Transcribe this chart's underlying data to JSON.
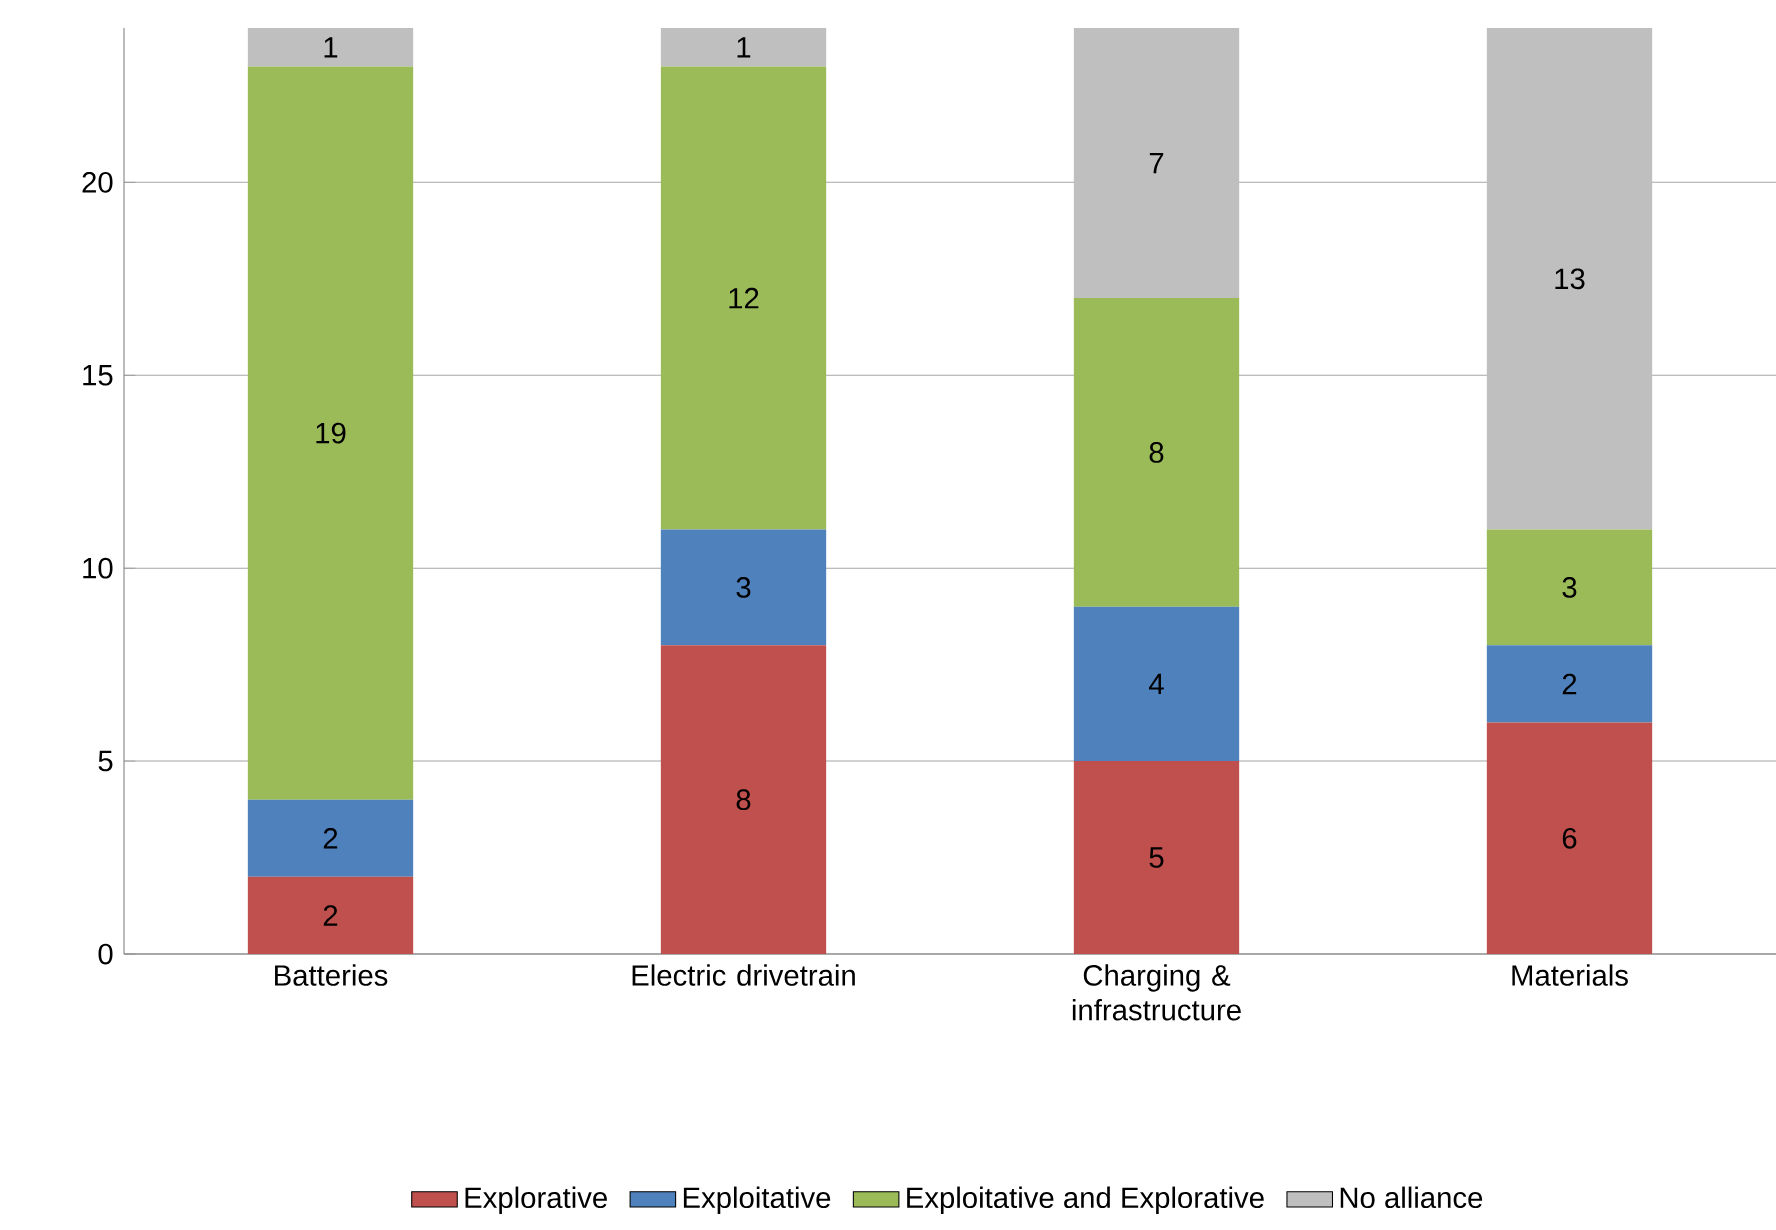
{
  "chart_data": {
    "type": "bar",
    "stacked": true,
    "categories": [
      "Batteries",
      "Electric drivetrain",
      "Charging & infrastructure",
      "Materials"
    ],
    "series": [
      {
        "name": "Explorative",
        "color": "#c0504d",
        "values": [
          2,
          8,
          5,
          6
        ]
      },
      {
        "name": "Exploitative",
        "color": "#4f81bd",
        "values": [
          2,
          3,
          4,
          2
        ]
      },
      {
        "name": "Exploitative and Explorative",
        "color": "#9bbb59",
        "values": [
          19,
          12,
          8,
          3
        ]
      },
      {
        "name": "No alliance",
        "color": "#bfbfbf",
        "values": [
          1,
          1,
          7,
          13
        ]
      }
    ],
    "ylim": [
      0,
      24
    ],
    "yticks": [
      0,
      5,
      10,
      15,
      20
    ],
    "grid": "y",
    "legend": "bottom",
    "data_labels": true
  }
}
